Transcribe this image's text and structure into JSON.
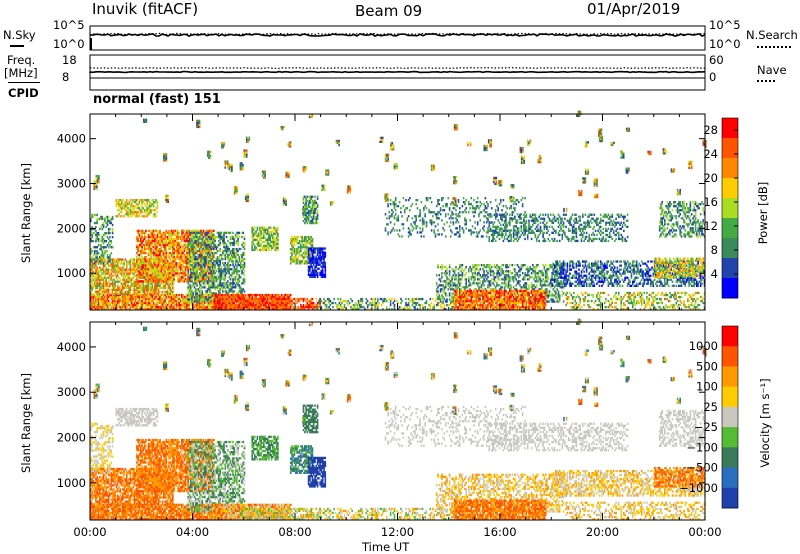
{
  "header": {
    "station": "Inuvik (fitACF)",
    "beam": "Beam 09",
    "date": "01/Apr/2019",
    "mode": "normal (fast) 151"
  },
  "strip": {
    "nsky_label": "N.Sky",
    "nsky_ticks": [
      "10^5",
      "10^0"
    ],
    "nsearch_label": "N.Search",
    "nsearch_ticks": [
      "10^5",
      "10^0"
    ],
    "freq_label_1": "Freq.",
    "freq_label_2": "[MHz]",
    "freq_ticks": [
      "18",
      "8"
    ],
    "nave_label": "Nave",
    "nave_ticks": [
      "60",
      "0"
    ],
    "cpid_label": "CPID"
  },
  "colors": {
    "power_scale": [
      "#0000ff",
      "#2244aa",
      "#3a8a5a",
      "#44aa44",
      "#aadd22",
      "#ffcc00",
      "#ff8800",
      "#ff5500",
      "#ff0000"
    ],
    "velocity_scale": [
      "#1f3faa",
      "#2a6ec0",
      "#3a7a5a",
      "#55bb33",
      "#c8c8c0",
      "#ffcc00",
      "#ff9900",
      "#ff5500",
      "#ff0000"
    ]
  },
  "chart_data": [
    {
      "type": "heatmap",
      "name": "power",
      "xlabel": "Time UT",
      "ylabel": "Slant Range [km]",
      "x_ticks": [
        "00:00",
        "04:00",
        "08:00",
        "12:00",
        "16:00",
        "20:00",
        "00:00"
      ],
      "xlim_hours": [
        0,
        24
      ],
      "y_ticks": [
        1000,
        2000,
        3000,
        4000
      ],
      "ylim": [
        180,
        4550
      ],
      "colorbar_label": "Power [dB]",
      "colorbar_ticks": [
        4,
        8,
        12,
        16,
        20,
        24,
        28
      ],
      "colorbar_range": [
        0,
        30
      ]
    },
    {
      "type": "heatmap",
      "name": "velocity",
      "xlabel": "Time UT",
      "ylabel": "Slant Range [km]",
      "x_ticks": [
        "00:00",
        "04:00",
        "08:00",
        "12:00",
        "16:00",
        "20:00",
        "00:00"
      ],
      "xlim_hours": [
        0,
        24
      ],
      "y_ticks": [
        1000,
        2000,
        3000,
        4000
      ],
      "ylim": [
        180,
        4550
      ],
      "colorbar_label": "Velocity [m s⁻¹]",
      "colorbar_ticks": [
        "1000",
        "500",
        "100",
        "25",
        "−25",
        "−100",
        "−500",
        "−1000"
      ]
    }
  ]
}
